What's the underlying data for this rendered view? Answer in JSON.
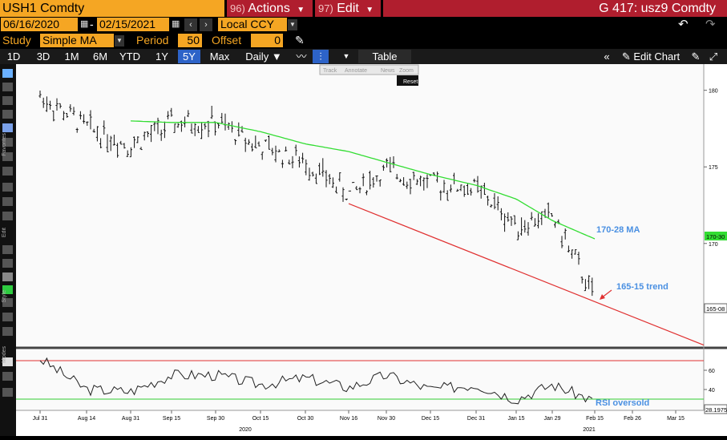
{
  "header": {
    "ticker": "USH1 Comdty",
    "actions_num": "96)",
    "actions_label": "Actions",
    "edit_num": "97)",
    "edit_label": "Edit",
    "page_title": "G 417: usz9 Comdty"
  },
  "date_range": {
    "start": "06/16/2020",
    "sep": "-",
    "end": "02/15/2021",
    "currency": "Local CCY"
  },
  "study": {
    "label": "Study",
    "value": "Simple MA",
    "period_label": "Period",
    "period": "50",
    "offset_label": "Offset",
    "offset": "0"
  },
  "ranges": [
    "1D",
    "3D",
    "1M",
    "6M",
    "YTD",
    "1Y",
    "5Y",
    "Max"
  ],
  "active_range": "5Y",
  "frequency": "Daily",
  "table_label": "Table",
  "edit_chart_label": "Edit Chart",
  "floating_tools": {
    "track": "Track",
    "annotate": "Annotate",
    "news": "News",
    "zoom": "Zoom",
    "reset": "Reset"
  },
  "side_labels": {
    "favorites": "Favorites",
    "edit": "Edit",
    "style": "Style",
    "modes": "Modes"
  },
  "annotations": {
    "ma": "170-28 MA",
    "trend": "165-15 trend",
    "rsi": "RSI oversold"
  },
  "price_axis": {
    "ticks": [
      "180",
      "175",
      "170"
    ],
    "ma_tag": "170-30",
    "last_tag": "165-08"
  },
  "rsi_axis": {
    "ticks": [
      "60",
      "40"
    ],
    "last_tag": "28.1975"
  },
  "x_axis": {
    "ticks": [
      "Jul 31",
      "Aug 14",
      "Aug 31",
      "Sep 15",
      "Sep 30",
      "Oct 15",
      "Oct 30",
      "Nov 16",
      "Nov 30",
      "Dec 15",
      "Dec 31",
      "Jan 15",
      "Jan 29",
      "Feb 15",
      "Feb 26",
      "Mar 15"
    ],
    "years": [
      "2020",
      "2021"
    ]
  },
  "colors": {
    "orange": "#f5a623",
    "red_panel": "#b01e2e",
    "ma_line": "#33dd33",
    "trend_line": "#e03030",
    "label_blue": "#4a90e2",
    "active_blue": "#2d63c8"
  },
  "chart_data": [
    {
      "type": "line",
      "series": [
        {
          "name": "USH1 Comdty",
          "kind": "ohlc",
          "x": [
            "Jul 31",
            "Aug 14",
            "Aug 31",
            "Sep 15",
            "Sep 30",
            "Oct 15",
            "Oct 30",
            "Nov 16",
            "Nov 30",
            "Dec 15",
            "Dec 31",
            "Jan 15",
            "Jan 29",
            "Feb 15"
          ],
          "values": [
            179.6,
            177.6,
            176.4,
            177.8,
            177.9,
            176.3,
            175.3,
            173.2,
            174.8,
            173.9,
            173.6,
            171.2,
            171.8,
            166.4
          ]
        },
        {
          "name": "Simple MA 50",
          "x": [
            "Aug 31",
            "Sep 15",
            "Sep 30",
            "Oct 15",
            "Oct 30",
            "Nov 16",
            "Nov 30",
            "Dec 15",
            "Dec 31",
            "Jan 15",
            "Jan 29",
            "Feb 15"
          ],
          "values": [
            178.0,
            177.9,
            177.9,
            177.3,
            176.5,
            176.0,
            175.3,
            174.5,
            173.8,
            172.9,
            171.5,
            170.3
          ]
        },
        {
          "name": "trend",
          "x": [
            "Nov 16",
            "Feb 15"
          ],
          "values": [
            172.6,
            166.2
          ]
        }
      ],
      "ylim": [
        163.5,
        181.5
      ]
    },
    {
      "type": "line",
      "series": [
        {
          "name": "RSI",
          "x": [
            "Jul 31",
            "Aug 14",
            "Aug 31",
            "Sep 15",
            "Sep 30",
            "Oct 15",
            "Oct 30",
            "Nov 16",
            "Nov 30",
            "Dec 15",
            "Dec 31",
            "Jan 15",
            "Jan 29",
            "Feb 15"
          ],
          "values": [
            72,
            40,
            38,
            55,
            55,
            45,
            52,
            42,
            55,
            40,
            45,
            30,
            45,
            28
          ]
        }
      ],
      "ylim": [
        20,
        80
      ],
      "reference_lines": [
        70,
        30
      ]
    }
  ]
}
